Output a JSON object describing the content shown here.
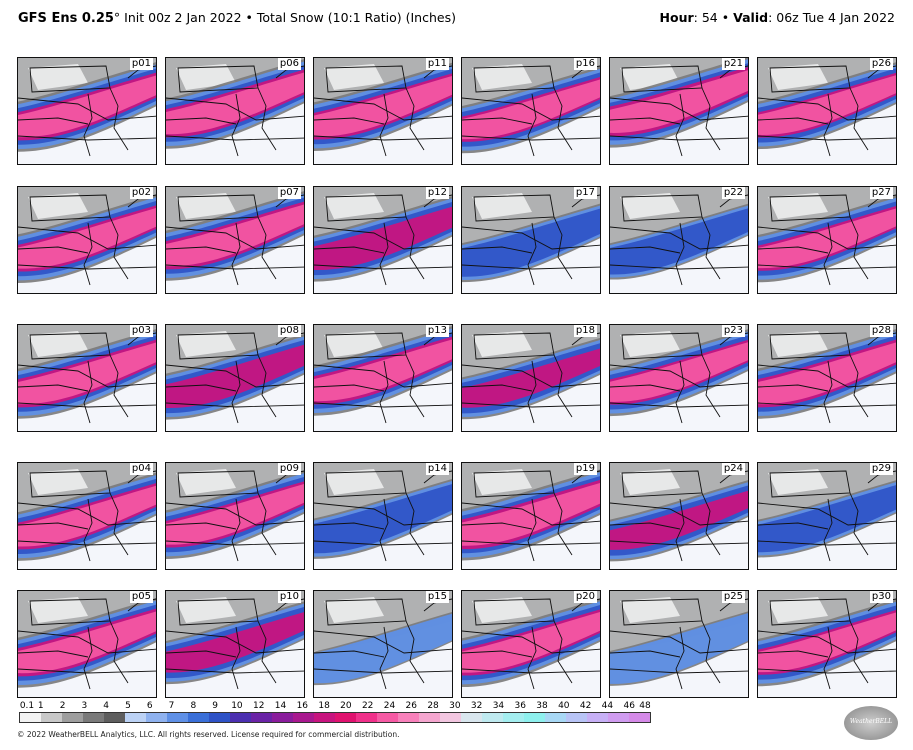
{
  "header": {
    "model": "GFS Ens 0.25",
    "degree": "°",
    "init": "Init 00z 2 Jan 2022",
    "separator": "•",
    "product": "Total Snow (10:1 Ratio) (Inches)",
    "hour_label": "Hour",
    "hour_value": ": 54",
    "valid_label": "Valid",
    "valid_value": ": 06z Tue 4 Jan 2022"
  },
  "panels": [
    {
      "label": "p01",
      "intensity": 0.85,
      "shift": 0.0,
      "col": 0,
      "row": 0
    },
    {
      "label": "p06",
      "intensity": 0.85,
      "shift": -0.05,
      "col": 1,
      "row": 0
    },
    {
      "label": "p11",
      "intensity": 0.8,
      "shift": 0.0,
      "col": 2,
      "row": 0
    },
    {
      "label": "p16",
      "intensity": 0.75,
      "shift": 0.05,
      "col": 3,
      "row": 0
    },
    {
      "label": "p21",
      "intensity": 0.9,
      "shift": -0.08,
      "col": 4,
      "row": 0
    },
    {
      "label": "p26",
      "intensity": 0.75,
      "shift": -0.02,
      "col": 5,
      "row": 0
    },
    {
      "label": "p02",
      "intensity": 0.8,
      "shift": 0.05,
      "col": 0,
      "row": 1
    },
    {
      "label": "p07",
      "intensity": 0.85,
      "shift": 0.0,
      "col": 1,
      "row": 1
    },
    {
      "label": "p12",
      "intensity": 0.7,
      "shift": 0.05,
      "col": 2,
      "row": 1
    },
    {
      "label": "p17",
      "intensity": 0.45,
      "shift": 0.12,
      "col": 3,
      "row": 1
    },
    {
      "label": "p22",
      "intensity": 0.35,
      "shift": 0.1,
      "col": 4,
      "row": 1
    },
    {
      "label": "p27",
      "intensity": 0.75,
      "shift": 0.05,
      "col": 5,
      "row": 1
    },
    {
      "label": "p03",
      "intensity": 0.85,
      "shift": 0.0,
      "col": 0,
      "row": 2
    },
    {
      "label": "p08",
      "intensity": 0.7,
      "shift": 0.05,
      "col": 1,
      "row": 2
    },
    {
      "label": "p13",
      "intensity": 0.85,
      "shift": -0.05,
      "col": 2,
      "row": 2
    },
    {
      "label": "p18",
      "intensity": 0.55,
      "shift": 0.08,
      "col": 3,
      "row": 2
    },
    {
      "label": "p23",
      "intensity": 0.75,
      "shift": -0.02,
      "col": 4,
      "row": 2
    },
    {
      "label": "p28",
      "intensity": 0.85,
      "shift": 0.0,
      "col": 5,
      "row": 2
    },
    {
      "label": "p04",
      "intensity": 0.8,
      "shift": 0.08,
      "col": 0,
      "row": 3
    },
    {
      "label": "p09",
      "intensity": 0.8,
      "shift": 0.05,
      "col": 1,
      "row": 3
    },
    {
      "label": "p14",
      "intensity": 0.5,
      "shift": 0.12,
      "col": 2,
      "row": 3
    },
    {
      "label": "p19",
      "intensity": 0.9,
      "shift": 0.05,
      "col": 3,
      "row": 3
    },
    {
      "label": "p24",
      "intensity": 0.55,
      "shift": 0.15,
      "col": 4,
      "row": 3
    },
    {
      "label": "p29",
      "intensity": 0.4,
      "shift": 0.12,
      "col": 5,
      "row": 3
    },
    {
      "label": "p05",
      "intensity": 0.85,
      "shift": 0.05,
      "col": 0,
      "row": 4
    },
    {
      "label": "p10",
      "intensity": 0.6,
      "shift": 0.05,
      "col": 1,
      "row": 4
    },
    {
      "label": "p15",
      "intensity": 0.25,
      "shift": 0.15,
      "col": 2,
      "row": 4
    },
    {
      "label": "p20",
      "intensity": 0.8,
      "shift": 0.05,
      "col": 3,
      "row": 4
    },
    {
      "label": "p25",
      "intensity": 0.3,
      "shift": 0.15,
      "col": 4,
      "row": 4
    },
    {
      "label": "p30",
      "intensity": 0.75,
      "shift": 0.05,
      "col": 5,
      "row": 4
    }
  ],
  "colorbar": {
    "ticks": [
      "0.1",
      "1",
      "2",
      "3",
      "4",
      "5",
      "6",
      "7",
      "8",
      "9",
      "10",
      "12",
      "14",
      "16",
      "18",
      "20",
      "22",
      "24",
      "26",
      "28",
      "30",
      "32",
      "34",
      "36",
      "38",
      "40",
      "42",
      "44",
      "46",
      "48"
    ],
    "colors": [
      "#f2f2f2",
      "#c8c8c8",
      "#9e9e9e",
      "#7a7a7a",
      "#5e5e5e",
      "#bcd2f5",
      "#8fb2ef",
      "#5f90e6",
      "#3a6fd8",
      "#2e52c6",
      "#4b2fb0",
      "#6a23a6",
      "#8a1c9c",
      "#a9188f",
      "#c8147f",
      "#e0126f",
      "#f0308a",
      "#f65aa4",
      "#f881bb",
      "#f5a6cf",
      "#f2c6e0",
      "#d9e6ee",
      "#bfeaf0",
      "#a4eef0",
      "#8ef0ee",
      "#a8d8f5",
      "#b8c4f6",
      "#c7b0f6",
      "#d09cf0",
      "#d58ae8"
    ]
  },
  "footer": {
    "copyright": "© 2022 WeatherBELL Analytics, LLC. All rights reserved. License required for commercial distribution."
  },
  "logo": {
    "text": "WeatherBELL"
  }
}
